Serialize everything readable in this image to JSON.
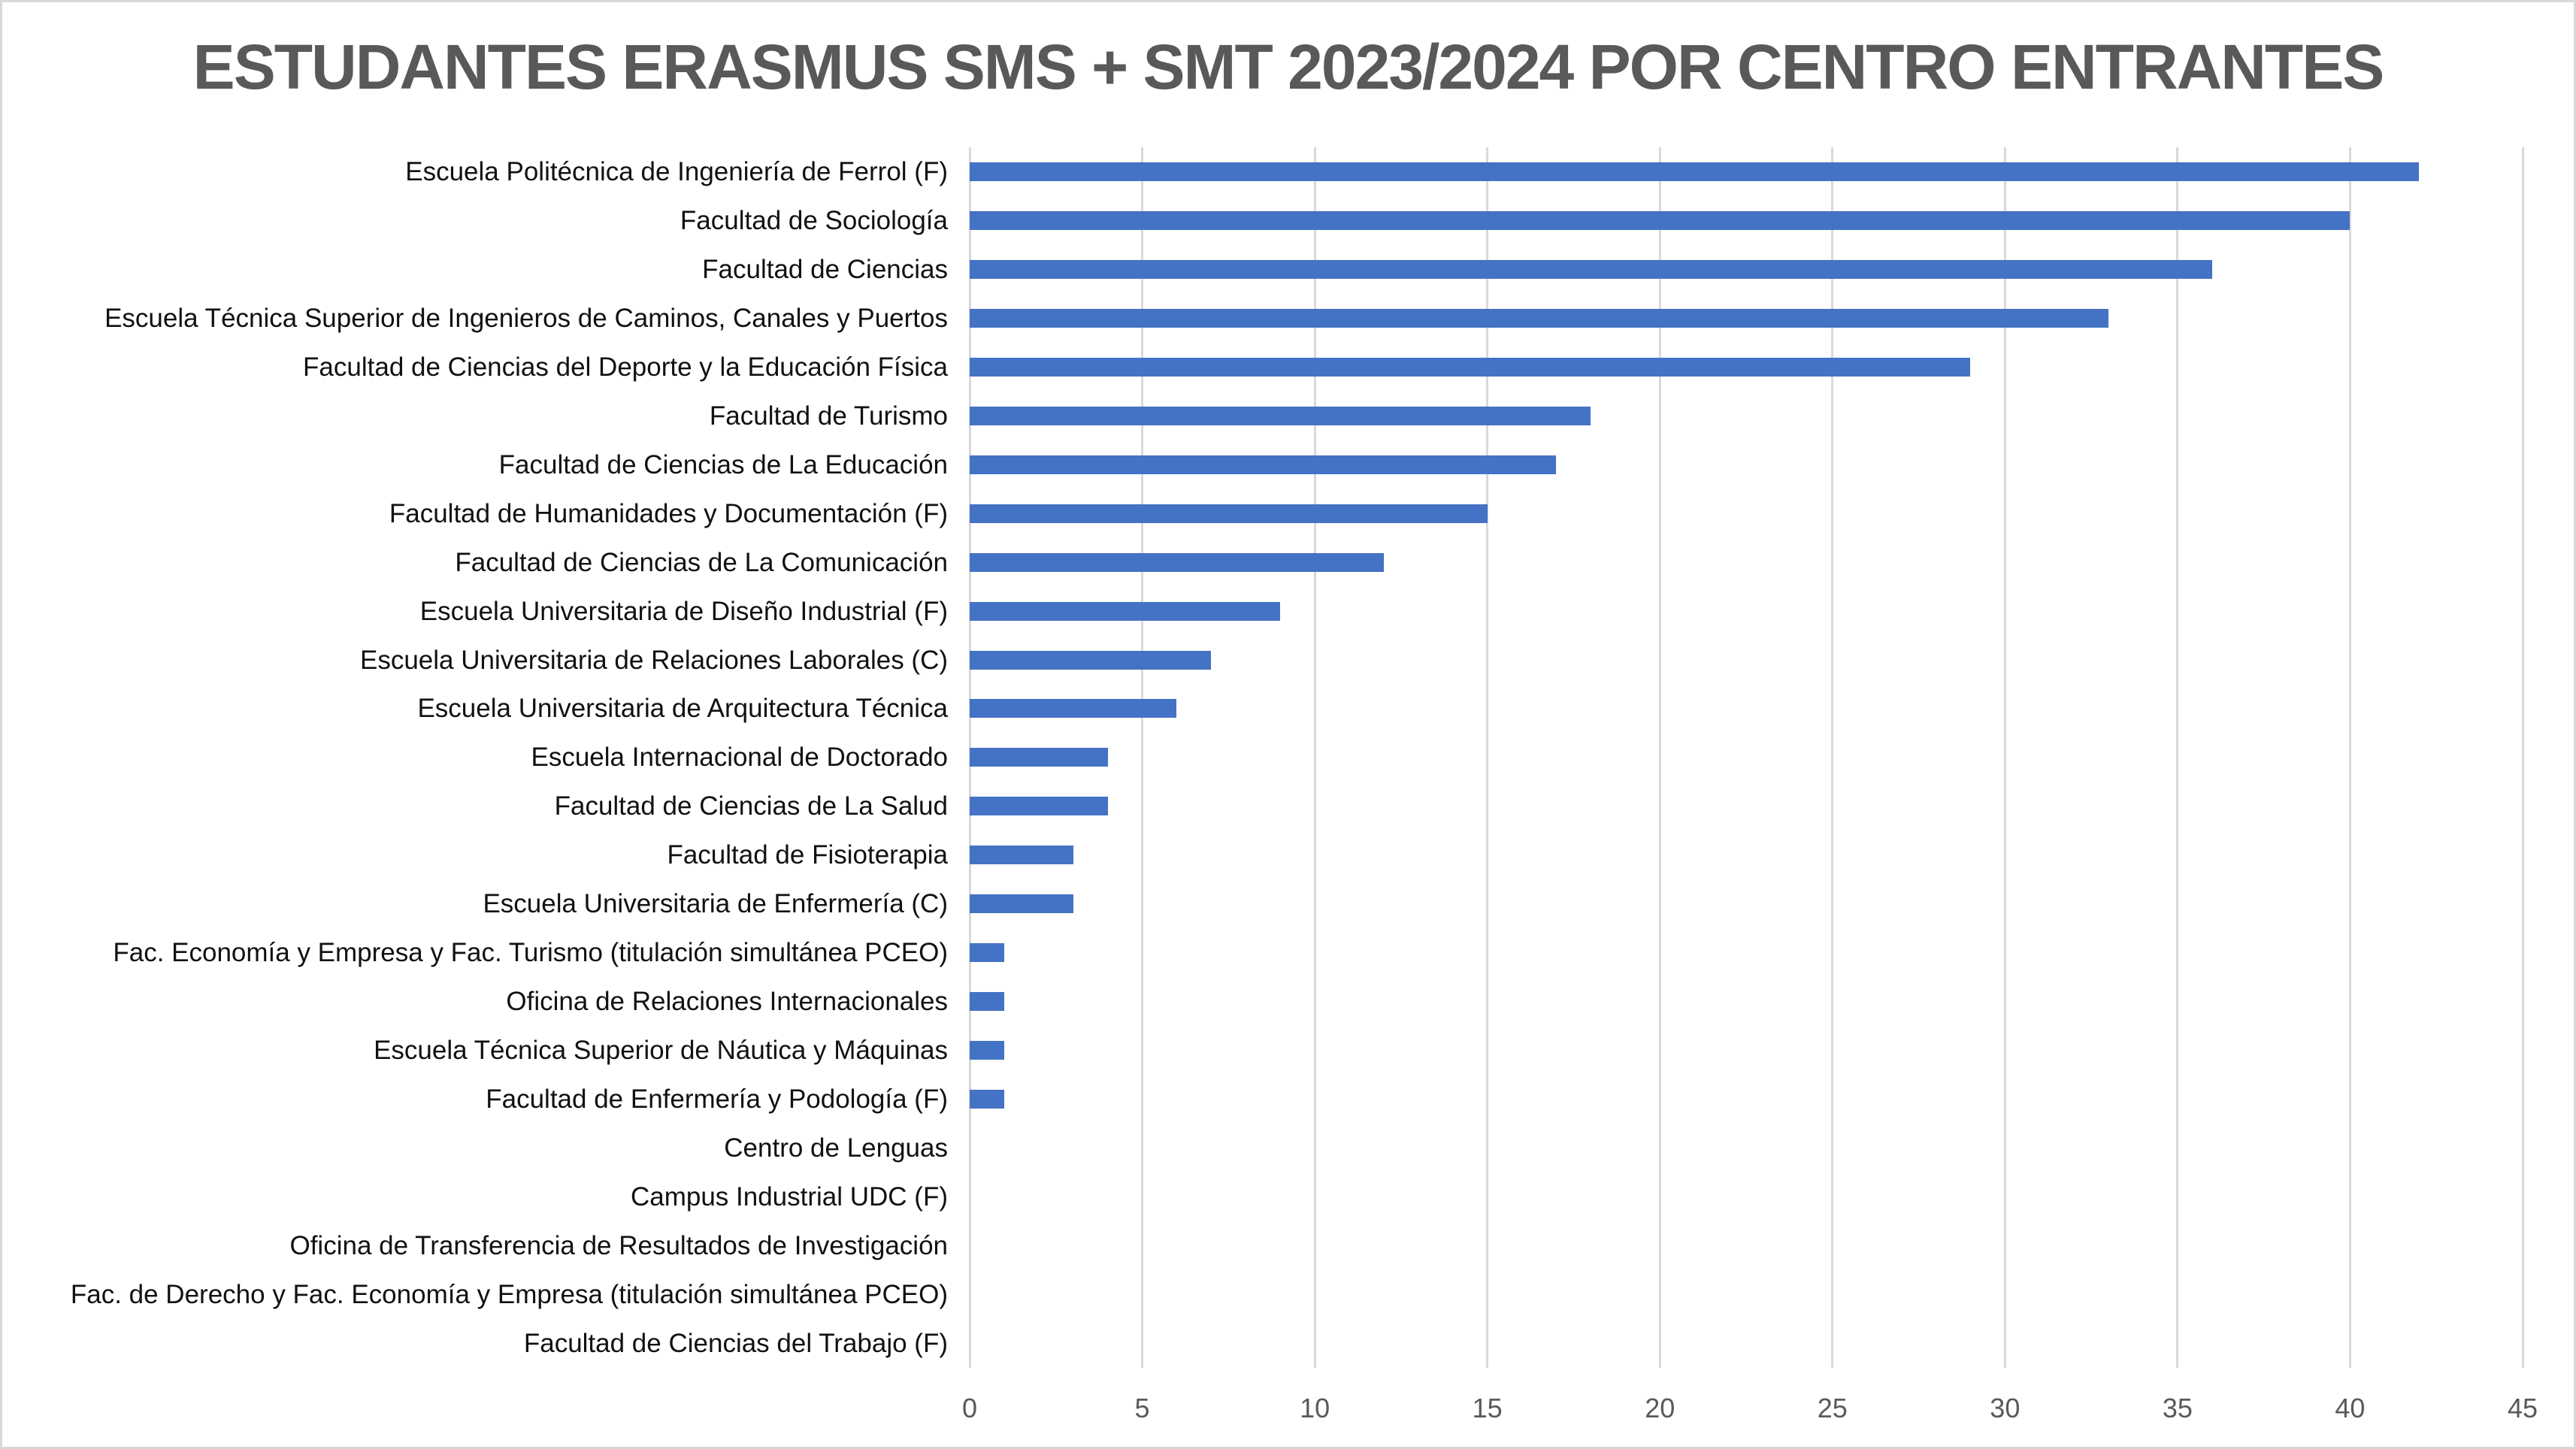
{
  "title": "ESTUDANTES ERASMUS SMS + SMT 2023/2024 POR CENTRO ENTRANTES",
  "chart_data": {
    "type": "bar",
    "orientation": "horizontal",
    "title": "ESTUDANTES ERASMUS SMS + SMT 2023/2024 POR CENTRO ENTRANTES",
    "xlabel": "",
    "ylabel": "",
    "xlim": [
      0,
      45
    ],
    "x_ticks": [
      0,
      5,
      10,
      15,
      20,
      25,
      30,
      35,
      40,
      45
    ],
    "grid": true,
    "legend": false,
    "categories": [
      "Escuela Politécnica de Ingeniería de Ferrol (F)",
      "Facultad de Sociología",
      "Facultad de Ciencias",
      "Escuela Técnica Superior de Ingenieros de Caminos, Canales y Puertos",
      "Facultad de Ciencias del Deporte y la Educación Física",
      "Facultad de Turismo",
      "Facultad de Ciencias de La Educación",
      "Facultad de Humanidades y Documentación (F)",
      "Facultad de Ciencias de La Comunicación",
      "Escuela Universitaria de Diseño Industrial (F)",
      "Escuela Universitaria de Relaciones Laborales (C)",
      "Escuela Universitaria de Arquitectura Técnica",
      "Escuela Internacional de Doctorado",
      "Facultad de Ciencias de La Salud",
      "Facultad de Fisioterapia",
      "Escuela Universitaria de Enfermería (C)",
      "Fac. Economía y Empresa y Fac. Turismo (titulación simultánea PCEO)",
      "Oficina de Relaciones Internacionales",
      "Escuela Técnica Superior de Náutica y Máquinas",
      "Facultad de Enfermería y Podología (F)",
      "Centro de Lenguas",
      "Campus Industrial UDC (F)",
      "Oficina de Transferencia de Resultados de Investigación",
      "Fac. de Derecho y Fac. Economía y Empresa (titulación simultánea PCEO)",
      "Facultad de Ciencias del Trabajo (F)"
    ],
    "values": [
      42,
      40,
      36,
      33,
      29,
      18,
      17,
      15,
      12,
      9,
      7,
      6,
      4,
      4,
      3,
      3,
      1,
      1,
      1,
      1,
      0,
      0,
      0,
      0,
      0
    ],
    "colors": {
      "bar": "#4472C4",
      "gridline": "#D9D9D9",
      "chart_border": "#D9D9D9",
      "title_text": "#595959",
      "tick_label": "#595959",
      "category_label": "#111111",
      "background": "#FFFFFF"
    }
  }
}
